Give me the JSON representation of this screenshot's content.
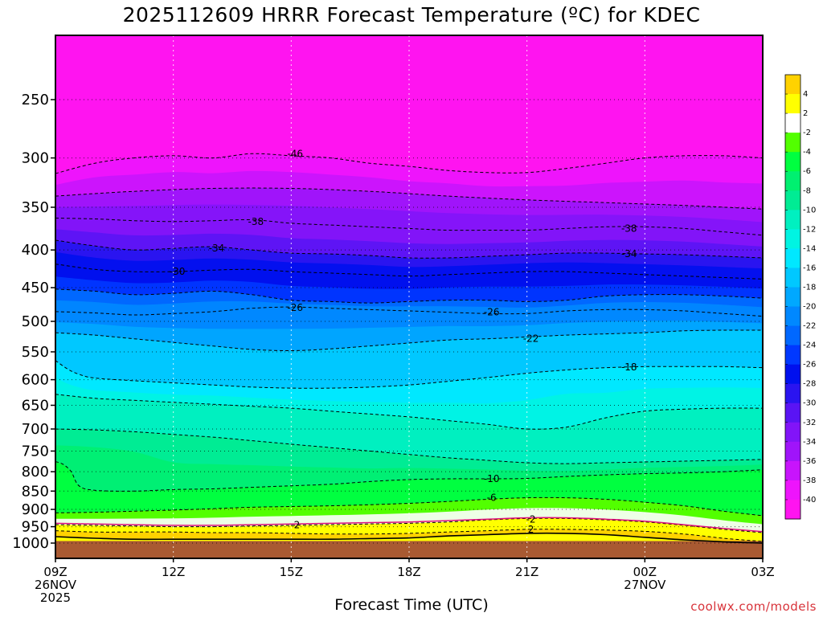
{
  "title": "2025112609 HRRR Forecast Temperature (ºC) for KDEC",
  "credit": "coolwx.com/models",
  "chart_data": {
    "type": "heatmap",
    "title": "2025112609 HRRR Forecast Temperature (ºC) for KDEC",
    "xlabel": "Forecast Time (UTC)",
    "ylabel": "",
    "x_ticks": [
      {
        "hour": 0,
        "lines": [
          "09Z",
          "26NOV",
          "2025"
        ]
      },
      {
        "hour": 3,
        "lines": [
          "12Z"
        ]
      },
      {
        "hour": 6,
        "lines": [
          "15Z"
        ]
      },
      {
        "hour": 9,
        "lines": [
          "18Z"
        ]
      },
      {
        "hour": 12,
        "lines": [
          "21Z"
        ]
      },
      {
        "hour": 15,
        "lines": [
          "00Z",
          "27NOV"
        ]
      },
      {
        "hour": 18,
        "lines": [
          "03Z"
        ]
      }
    ],
    "xlim_hours": [
      0,
      18
    ],
    "y_ticks": [
      250,
      300,
      350,
      400,
      450,
      500,
      550,
      600,
      650,
      700,
      750,
      800,
      850,
      900,
      950,
      1000
    ],
    "ylim_hpa": [
      200,
      1050
    ],
    "y_scale": "log",
    "grid": true,
    "colorbar": {
      "position": "right",
      "labels": [
        "4",
        "2",
        "-2",
        "-4",
        "-6",
        "-8",
        "-10",
        "-12",
        "-14",
        "-16",
        "-18",
        "-20",
        "-22",
        "-24",
        "-26",
        "-28",
        "-30",
        "-32",
        "-34",
        "-36",
        "-38",
        "-40"
      ],
      "colors": [
        "#ffd200",
        "#ffff00",
        "#ffffff",
        "#52ff00",
        "#00ff40",
        "#00f070",
        "#00ec94",
        "#00f0c0",
        "#00f4e2",
        "#00e8ff",
        "#00c8ff",
        "#00a8ff",
        "#0088ff",
        "#0068ff",
        "#0038ff",
        "#0010ee",
        "#2a14f0",
        "#5a14f4",
        "#8214f8",
        "#a014fa",
        "#c814fc",
        "#ee14fc",
        "#ff14f0"
      ]
    },
    "ground_color": "#a95a32",
    "contours": [
      {
        "label": "-46",
        "hours": [
          0,
          1,
          2,
          3,
          4,
          5,
          6,
          7,
          8,
          9,
          10,
          11,
          12,
          13,
          14,
          15,
          16,
          17,
          18
        ],
        "pressure": [
          315,
          305,
          300,
          298,
          300,
          296,
          298,
          300,
          305,
          308,
          312,
          314,
          314,
          310,
          305,
          300,
          298,
          298,
          300
        ]
      },
      {
        "label": "",
        "hours": [
          0,
          2,
          4,
          6,
          8,
          10,
          12,
          14,
          16,
          18
        ],
        "pressure": [
          338,
          333,
          330,
          330,
          333,
          338,
          342,
          345,
          348,
          352
        ]
      },
      {
        "label": "-38",
        "hours": [
          0,
          1,
          2,
          3,
          4,
          5,
          6,
          7,
          8,
          9,
          10,
          11,
          12,
          13,
          14,
          15,
          16,
          17,
          18
        ],
        "pressure": [
          362,
          363,
          365,
          366,
          365,
          364,
          368,
          370,
          372,
          374,
          376,
          376,
          376,
          374,
          372,
          372,
          374,
          378,
          382
        ]
      },
      {
        "label": "-34",
        "hours": [
          0,
          1,
          2,
          3,
          4,
          5,
          6,
          7,
          8,
          9,
          10,
          11,
          12,
          13,
          14,
          15,
          16,
          17,
          18
        ],
        "pressure": [
          388,
          395,
          400,
          398,
          396,
          400,
          404,
          405,
          407,
          410,
          410,
          408,
          406,
          404,
          404,
          405,
          406,
          408,
          410
        ]
      },
      {
        "label": "-30",
        "hours": [
          0,
          1,
          2,
          3,
          4,
          5,
          6,
          7,
          8,
          9,
          10,
          11,
          12,
          13,
          14,
          15,
          16,
          17,
          18
        ],
        "pressure": [
          418,
          425,
          428,
          428,
          426,
          425,
          428,
          430,
          432,
          434,
          432,
          430,
          428,
          428,
          430,
          432,
          434,
          436,
          438
        ]
      },
      {
        "label": "",
        "hours": [
          0,
          1,
          2,
          3,
          4,
          5,
          6,
          7,
          8,
          9,
          10,
          11,
          12,
          13,
          14,
          15,
          16,
          17,
          18
        ],
        "pressure": [
          452,
          455,
          460,
          458,
          455,
          460,
          468,
          470,
          472,
          470,
          468,
          468,
          470,
          468,
          462,
          460,
          460,
          462,
          465
        ]
      },
      {
        "label": "-26",
        "hours": [
          0,
          1,
          2,
          3,
          4,
          5,
          6,
          7,
          8,
          9,
          10,
          11,
          12,
          13,
          14,
          15,
          16,
          17,
          18
        ],
        "pressure": [
          485,
          487,
          490,
          488,
          485,
          480,
          478,
          480,
          482,
          484,
          486,
          488,
          488,
          484,
          482,
          482,
          484,
          488,
          492
        ]
      },
      {
        "label": "-22",
        "hours": [
          0,
          1,
          2,
          3,
          4,
          5,
          6,
          7,
          8,
          9,
          10,
          11,
          12,
          13,
          14,
          15,
          16,
          17,
          18
        ],
        "pressure": [
          518,
          522,
          528,
          534,
          540,
          546,
          548,
          545,
          540,
          535,
          530,
          528,
          525,
          522,
          520,
          518,
          515,
          514,
          514
        ]
      },
      {
        "label": "-18",
        "hours": [
          0,
          0.3,
          0.6,
          1,
          2,
          3,
          4,
          5,
          6,
          7,
          8,
          9,
          10,
          11,
          12,
          13,
          14,
          15,
          16,
          17,
          18
        ],
        "pressure": [
          565,
          580,
          590,
          597,
          602,
          606,
          610,
          614,
          616,
          616,
          614,
          610,
          603,
          596,
          588,
          582,
          578,
          576,
          576,
          576,
          578
        ]
      },
      {
        "label": "",
        "hours": [
          0,
          1,
          2,
          3,
          4,
          5,
          6,
          7,
          8,
          9,
          10,
          11,
          12,
          13,
          14,
          15,
          16,
          17,
          18
        ],
        "pressure": [
          628,
          636,
          640,
          644,
          648,
          652,
          656,
          662,
          668,
          674,
          682,
          690,
          700,
          696,
          676,
          662,
          658,
          656,
          656
        ]
      },
      {
        "label": "",
        "hours": [
          0,
          1,
          2,
          3,
          4,
          5,
          6,
          7,
          8,
          9,
          10,
          11,
          12,
          13,
          14,
          15,
          16,
          17,
          18
        ],
        "pressure": [
          700,
          702,
          706,
          712,
          718,
          726,
          734,
          742,
          750,
          758,
          766,
          772,
          778,
          780,
          778,
          776,
          774,
          772,
          770
        ]
      },
      {
        "label": "-10",
        "hours": [
          0,
          0.2,
          0.4,
          0.6,
          1,
          2,
          3,
          4,
          5,
          6,
          7,
          8,
          9,
          10,
          11,
          12,
          13,
          14,
          15,
          16,
          17,
          18
        ],
        "pressure": [
          775,
          782,
          800,
          836,
          848,
          850,
          846,
          844,
          840,
          836,
          832,
          825,
          820,
          818,
          818,
          817,
          812,
          808,
          805,
          803,
          800,
          795
        ]
      },
      {
        "label": "-6",
        "hours": [
          0,
          1,
          2,
          3,
          4,
          5,
          6,
          7,
          8,
          9,
          10,
          11,
          12,
          13,
          14,
          15,
          16,
          17,
          18
        ],
        "pressure": [
          910,
          908,
          905,
          902,
          898,
          894,
          892,
          890,
          887,
          883,
          878,
          872,
          868,
          868,
          872,
          880,
          890,
          905,
          918
        ]
      },
      {
        "label": "-2",
        "hours": [
          0,
          1,
          2,
          3,
          4,
          5,
          6,
          7,
          8,
          9,
          10,
          11,
          12,
          13,
          14,
          15,
          16,
          17,
          18
        ],
        "pressure": [
          944,
          946,
          948,
          950,
          950,
          948,
          946,
          944,
          942,
          940,
          936,
          930,
          926,
          926,
          930,
          936,
          946,
          958,
          968
        ]
      },
      {
        "label": "2",
        "hours": [
          0,
          1,
          2,
          3,
          4,
          5,
          6,
          7,
          8,
          9,
          10,
          11,
          12,
          13,
          14,
          15,
          16,
          17,
          18
        ],
        "pressure": [
          962,
          966,
          966,
          966,
          968,
          968,
          970,
          972,
          972,
          970,
          966,
          962,
          958,
          958,
          960,
          964,
          972,
          985,
          995
        ]
      }
    ],
    "freezing_line": {
      "hours": [
        0,
        1,
        2,
        3,
        4,
        5,
        6,
        7,
        8,
        9,
        10,
        11,
        12,
        13,
        14,
        15,
        16,
        17,
        18
      ],
      "pressure": [
        940,
        942,
        944,
        946,
        946,
        944,
        942,
        940,
        938,
        936,
        932,
        928,
        924,
        924,
        928,
        934,
        944,
        955,
        965
      ]
    },
    "zero_c_surface_line": {
      "hours": [
        0,
        1,
        2,
        3,
        4,
        5,
        6,
        7,
        8,
        9,
        10,
        11,
        12,
        13,
        14,
        15,
        16,
        17,
        18
      ],
      "pressure": [
        980,
        985,
        988,
        988,
        988,
        988,
        988,
        988,
        986,
        984,
        978,
        974,
        970,
        970,
        974,
        982,
        990,
        996,
        1000
      ]
    },
    "contour_labels": [
      {
        "text": "-46",
        "hour": 6.1,
        "pressure": 296
      },
      {
        "text": "-38",
        "hour": 5.1,
        "pressure": 366
      },
      {
        "text": "-38",
        "hour": 14.6,
        "pressure": 374
      },
      {
        "text": "-34",
        "hour": 4.1,
        "pressure": 398
      },
      {
        "text": "-34",
        "hour": 14.6,
        "pressure": 405
      },
      {
        "text": "-30",
        "hour": 3.1,
        "pressure": 428
      },
      {
        "text": "-26",
        "hour": 6.1,
        "pressure": 479
      },
      {
        "text": "-26",
        "hour": 11.1,
        "pressure": 486
      },
      {
        "text": "-22",
        "hour": 12.1,
        "pressure": 528
      },
      {
        "text": "-18",
        "hour": 14.6,
        "pressure": 577
      },
      {
        "text": "-10",
        "hour": 11.1,
        "pressure": 818
      },
      {
        "text": "-6",
        "hour": 11.1,
        "pressure": 868
      },
      {
        "text": "-2",
        "hour": 6.1,
        "pressure": 945
      },
      {
        "text": "-2",
        "hour": 12.1,
        "pressure": 929
      },
      {
        "text": "2",
        "hour": 12.1,
        "pressure": 958
      }
    ]
  }
}
